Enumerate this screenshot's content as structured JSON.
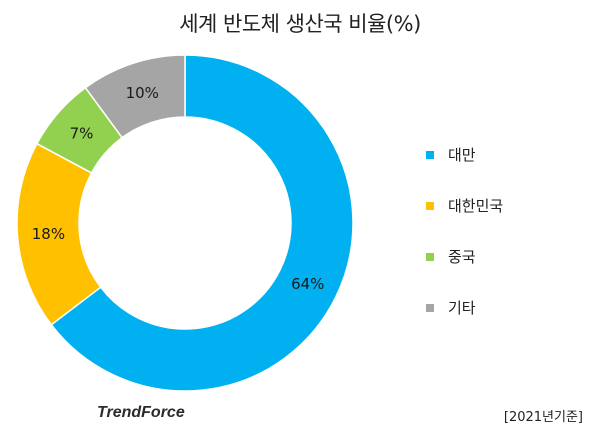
{
  "title": "세계 반도체 생산국 비율(%)",
  "chart_data": {
    "type": "pie",
    "donut": true,
    "title": "세계 반도체 생산국 비율(%)",
    "unit": "%",
    "categories": [
      "대만",
      "대한민국",
      "중국",
      "기타"
    ],
    "values": [
      64,
      18,
      7,
      10
    ],
    "labels": [
      "64%",
      "18%",
      "7%",
      "10%"
    ],
    "colors": [
      "#00B0F0",
      "#FFC000",
      "#92D050",
      "#A5A5A5"
    ],
    "start": "12 o'clock",
    "direction": "clockwise",
    "legend_position": "right"
  },
  "brand": "TrendForce",
  "footnote": "[2021년기준]"
}
